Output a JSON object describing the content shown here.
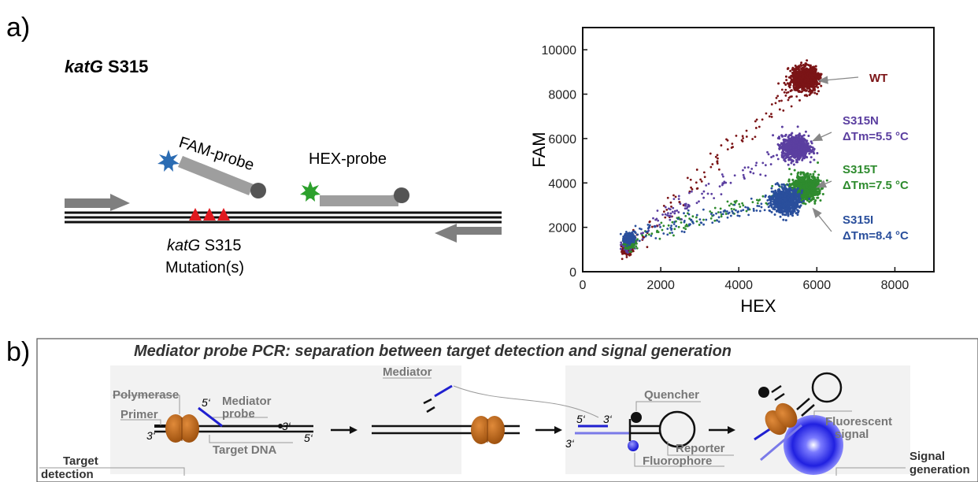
{
  "panel_a": {
    "panel_label": "a)",
    "gene_label_italic": "katG",
    "gene_label_rest": " S315",
    "fam_probe_label": "FAM-probe",
    "hex_probe_label": "HEX-probe",
    "mutation_label_italic": "katG",
    "mutation_label_rest": " S315",
    "mutation_label_line2": "Mutation(s)",
    "colors": {
      "fam": "#2b6cb3",
      "hex": "#2ca02c",
      "mutation": "#e0191f",
      "probe": "#8c8c8c"
    }
  },
  "chart_data": {
    "type": "scatter",
    "xlabel": "HEX",
    "ylabel": "FAM",
    "xlim": [
      0,
      9000
    ],
    "ylim": [
      0,
      11000
    ],
    "xticks": [
      0,
      2000,
      4000,
      6000,
      8000
    ],
    "yticks": [
      0,
      2000,
      4000,
      6000,
      8000,
      10000
    ],
    "series": [
      {
        "name": "WT",
        "color": "#7b1416",
        "annotation": "WT",
        "cluster_centers": [
          [
            1150,
            1000
          ],
          [
            5700,
            8700
          ]
        ],
        "arrow_target": [
          6050,
          8600
        ]
      },
      {
        "name": "S315N",
        "color": "#5b3fa0",
        "annotation": "S315N",
        "delta_tm": "ΔTm=5.5 °C",
        "cluster_centers": [
          [
            1150,
            1200
          ],
          [
            5450,
            5600
          ]
        ],
        "arrow_target": [
          5900,
          5900
        ]
      },
      {
        "name": "S315T",
        "color": "#2e8b2e",
        "annotation": "S315T",
        "delta_tm": "ΔTm=7.5 °C",
        "cluster_centers": [
          [
            1200,
            1300
          ],
          [
            5700,
            3800
          ]
        ],
        "arrow_target": [
          6000,
          3800
        ]
      },
      {
        "name": "S315I",
        "color": "#2a4f9c",
        "annotation": "S315I",
        "delta_tm": "ΔTm=8.4 °C",
        "cluster_centers": [
          [
            1200,
            1500
          ],
          [
            5200,
            3200
          ]
        ],
        "arrow_target": [
          5900,
          2850
        ]
      }
    ]
  },
  "panel_b": {
    "panel_label": "b)",
    "title": "Mediator probe PCR: separation between target detection and signal generation",
    "labels": {
      "polymerase": "Polymerase",
      "primer": "Primer",
      "mediator_probe_1": "Mediator",
      "mediator_probe_2": "probe",
      "target_dna": "Target DNA",
      "mediator": "Mediator",
      "quencher": "Quencher",
      "reporter": "Reporter",
      "fluorophore": "Fluorophore",
      "fluorescent_1": "Fluorescent",
      "fluorescent_2": "signal",
      "target_detection_1": "Target",
      "target_detection_2": "detection",
      "signal_generation_1": "Signal",
      "signal_generation_2": "generation"
    },
    "end_labels": {
      "five_prime": "5‘",
      "three_prime": "3‘"
    },
    "colors": {
      "polymerase": "#b35f12",
      "mediator": "#2020d0",
      "reporter": "#7a7ae8",
      "box": "#f2f2f2"
    }
  }
}
